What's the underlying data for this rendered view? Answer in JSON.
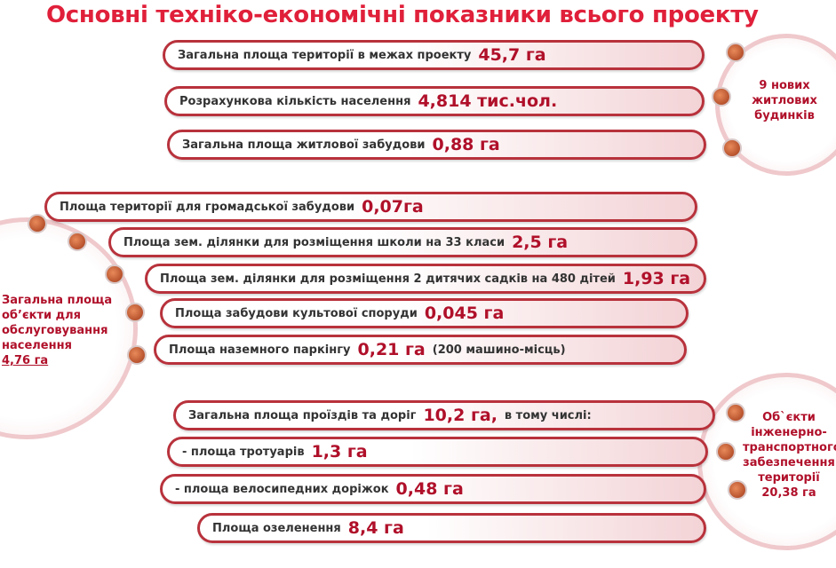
{
  "title": "Основні техніко-економічні показники всього проекту",
  "groups": [
    {
      "circle": [
        "9 нових",
        "житлових",
        "будинків"
      ],
      "items": [
        {
          "label": "Загальна площа території в межах проекту",
          "value": "45,7 га"
        },
        {
          "label": "Розрахункова кількість населення",
          "value": "4,814 тис.чол."
        },
        {
          "label": "Загальна площа житлової забудови",
          "value": "0,88 га"
        }
      ]
    },
    {
      "circle": [
        "Загальна площа",
        "об’єкти для",
        "обслуговування",
        "населення",
        "4,76 га"
      ],
      "items": [
        {
          "label": "Площа території для громадської забудови",
          "value": "0,07га"
        },
        {
          "label": "Площа зем. ділянки для розміщення школи на 33 класи",
          "value": "2,5 га"
        },
        {
          "label": "Площа зем. ділянки для розміщення 2 дитячих садків на 480 дітей",
          "value": "1,93 га"
        },
        {
          "label": "Площа забудови культової споруди",
          "value": "0,045 га"
        },
        {
          "label": "Площа наземного паркінгу",
          "value": "0,21 га",
          "note": "(200 машино-місць)"
        }
      ]
    },
    {
      "circle": [
        "Об`єкти",
        "інженерно-",
        "транспортного",
        "забезпечення",
        "території",
        "20,38 га"
      ],
      "items": [
        {
          "label": "Загальна площа проїздів та доріг",
          "value": "10,2 га,",
          "note": "в тому числі:"
        },
        {
          "label": "- площа тротуарів",
          "value": "1,3 га"
        },
        {
          "label": "- площа велосипедних доріжок",
          "value": "0,48 га"
        },
        {
          "label": "Площа озеленення",
          "value": "8,4 га"
        }
      ]
    }
  ]
}
